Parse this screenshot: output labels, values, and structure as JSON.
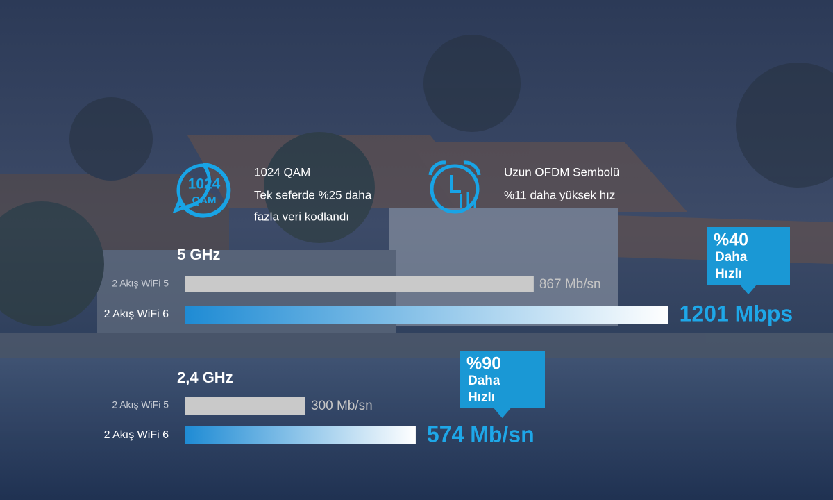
{
  "features": [
    {
      "icon_text": [
        "1024",
        "QAM"
      ],
      "title": "1024 QAM",
      "lines": [
        "Tek seferde %25 daha",
        "fazla veri kodlandı"
      ]
    },
    {
      "title": "Uzun OFDM Sembolü",
      "lines": [
        "%11 daha yüksek hız"
      ]
    }
  ],
  "chart_data": [
    {
      "type": "bar",
      "title": "5 GHz",
      "categories": [
        "2 Akış WiFi 5",
        "2 Akış WiFi 6"
      ],
      "values": [
        867,
        1201
      ],
      "value_labels": [
        "867 Mb/sn",
        "1201 Mbps"
      ],
      "colors": [
        "#c9c9c9",
        "#1e8bd4"
      ],
      "annotation": [
        "%40",
        "Daha",
        "Hızlı"
      ]
    },
    {
      "type": "bar",
      "title": "2,4 GHz",
      "categories": [
        "2 Akış WiFi 5",
        "2 Akış WiFi 6"
      ],
      "values": [
        300,
        574
      ],
      "value_labels": [
        "300 Mb/sn",
        "574 Mb/sn"
      ],
      "colors": [
        "#c9c9c9",
        "#1e8bd4"
      ],
      "annotation": [
        "%90",
        "Daha",
        "Hızlı"
      ]
    }
  ]
}
